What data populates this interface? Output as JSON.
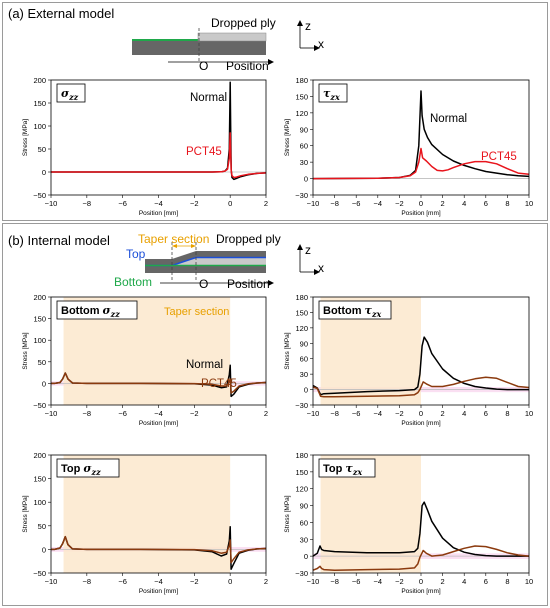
{
  "panels": {
    "a": {
      "title": "(a) External model",
      "schematic": {
        "dropped_ply": "Dropped ply",
        "origin": "O",
        "position": "Position",
        "axis_z": "z",
        "axis_x": "x"
      }
    },
    "b": {
      "title": "(b) Internal model",
      "schematic": {
        "taper_section": "Taper section",
        "dropped_ply": "Dropped ply",
        "top": "Top",
        "bottom": "Bottom",
        "origin": "O",
        "position": "Position",
        "axis_z": "z",
        "axis_x": "x"
      }
    }
  },
  "colors": {
    "normal": "#000000",
    "pct45_a": "#e8141c",
    "pct45_b": "#8b3a0e",
    "taper_fill": "#fbe7cc",
    "taper_label": "#e8a000",
    "highlight": "#f6c9ea",
    "top": "#1c4fd8",
    "bottom": "#1fa84a",
    "ply_dark": "#666666",
    "ply_light": "#c9c9c9",
    "green_layer": "#1fa84a"
  },
  "chart_data": [
    {
      "id": "a-szz",
      "type": "line",
      "title": "σzz",
      "title_main": "σ",
      "title_sub": "zz",
      "xlabel": "Position [mm]",
      "ylabel": "Stress [MPa]",
      "xlim": [
        -10,
        2
      ],
      "ylim": [
        -50,
        200
      ],
      "xticks": [
        "−10",
        "−8",
        "−6",
        "−4",
        "−2",
        "0",
        "2"
      ],
      "yticks": [
        "−50",
        "0",
        "50",
        "100",
        "150",
        "200"
      ],
      "annotations": [
        {
          "text": "Normal",
          "series": "normal"
        },
        {
          "text": "PCT45",
          "series": "pct45"
        }
      ],
      "series": [
        {
          "name": "Normal",
          "color_key": "normal",
          "x": [
            -10,
            -1.0,
            -0.5,
            -0.3,
            -0.15,
            -0.05,
            0.0,
            0.03,
            0.06,
            0.1,
            0.2,
            0.35,
            0.6,
            1.0,
            1.5,
            2.0
          ],
          "y": [
            0,
            0,
            0.5,
            2,
            8,
            50,
            195,
            90,
            5,
            -12,
            -16,
            -14,
            -10,
            -6,
            -3,
            -2
          ]
        },
        {
          "name": "PCT45",
          "color_key": "pct45_a",
          "x": [
            -10,
            -1.0,
            -0.5,
            -0.3,
            -0.15,
            -0.05,
            0.0,
            0.03,
            0.06,
            0.1,
            0.2,
            0.35,
            0.6,
            1.0,
            1.5,
            2.0
          ],
          "y": [
            0,
            0,
            0.5,
            2,
            6,
            30,
            85,
            40,
            3,
            -8,
            -12,
            -11,
            -8,
            -5,
            -3,
            -2
          ]
        }
      ]
    },
    {
      "id": "a-tzx",
      "type": "line",
      "title": "τzx",
      "title_main": "τ",
      "title_sub": "zx",
      "xlabel": "Position [mm]",
      "ylabel": "Stress [MPa]",
      "xlim": [
        -10,
        10
      ],
      "ylim": [
        -30,
        180
      ],
      "xticks": [
        "−10",
        "−8",
        "−6",
        "−4",
        "−2",
        "0",
        "2",
        "4",
        "6",
        "8",
        "10"
      ],
      "yticks": [
        "−30",
        "0",
        "30",
        "60",
        "90",
        "120",
        "150",
        "180"
      ],
      "annotations": [
        {
          "text": "Normal",
          "series": "normal"
        },
        {
          "text": "PCT45",
          "series": "pct45"
        }
      ],
      "series": [
        {
          "name": "Normal",
          "color_key": "normal",
          "x": [
            -10,
            -4,
            -2,
            -1,
            -0.5,
            -0.2,
            0,
            0.1,
            0.3,
            0.6,
            1,
            2,
            3,
            4,
            5,
            6,
            7,
            8,
            9,
            10
          ],
          "y": [
            0,
            0.5,
            2,
            6,
            15,
            60,
            160,
            115,
            90,
            75,
            62,
            44,
            32,
            24,
            18,
            13,
            10,
            7,
            5,
            4
          ]
        },
        {
          "name": "PCT45",
          "color_key": "pct45_a",
          "x": [
            -10,
            -4,
            -2,
            -1,
            -0.5,
            -0.2,
            0,
            0.15,
            0.5,
            1,
            1.5,
            2,
            2.5,
            3,
            4,
            5,
            6,
            7,
            8,
            9,
            10
          ],
          "y": [
            0,
            0.5,
            2,
            5,
            12,
            30,
            55,
            38,
            32,
            22,
            15,
            14,
            16,
            20,
            27,
            31,
            31,
            27,
            18,
            10,
            8
          ]
        }
      ]
    },
    {
      "id": "b-bottom-szz",
      "type": "line",
      "title": "Bottom σzz",
      "title_prefix": "Bottom ",
      "title_main": "σ",
      "title_sub": "zz",
      "xlabel": "Position [mm]",
      "ylabel": "Stress [MPa]",
      "xlim": [
        -10,
        2
      ],
      "ylim": [
        -50,
        200
      ],
      "xticks": [
        "−10",
        "−8",
        "−6",
        "−4",
        "−2",
        "0",
        "2"
      ],
      "yticks": [
        "−50",
        "0",
        "50",
        "100",
        "150",
        "200"
      ],
      "taper_region": [
        -9.3,
        0
      ],
      "highlight_band": [
        -5,
        5
      ],
      "taper_label": "Taper section",
      "annotations": [
        {
          "text": "Normal",
          "series": "normal"
        },
        {
          "text": "PCT45",
          "series": "pct45"
        }
      ],
      "series": [
        {
          "name": "Normal",
          "color_key": "normal",
          "x": [
            -10,
            -9.8,
            -9.5,
            -9.35,
            -9.2,
            -9.05,
            -8.8,
            -8.0,
            -5,
            -2,
            -1,
            -0.5,
            -0.2,
            -0.05,
            0,
            0.05,
            0.2,
            0.5,
            1,
            1.5,
            2
          ],
          "y": [
            0,
            0,
            2,
            10,
            24,
            10,
            1,
            0,
            0,
            -1,
            -4,
            -10,
            -8,
            20,
            42,
            -30,
            -25,
            -8,
            -2,
            1,
            2
          ]
        },
        {
          "name": "PCT45",
          "color_key": "pct45_b",
          "x": [
            -10,
            -9.8,
            -9.5,
            -9.35,
            -9.2,
            -9.05,
            -8.8,
            -8.0,
            -5,
            -2,
            -1,
            -0.5,
            -0.2,
            -0.05,
            0,
            0.05,
            0.2,
            0.5,
            1,
            1.5,
            2
          ],
          "y": [
            0,
            0,
            2,
            10,
            24,
            10,
            1,
            0,
            0,
            -0.5,
            -2,
            -6,
            -6,
            4,
            10,
            -22,
            -18,
            -6,
            -1,
            1,
            2
          ]
        }
      ]
    },
    {
      "id": "b-bottom-tzx",
      "type": "line",
      "title": "Bottom τzx",
      "title_prefix": "Bottom ",
      "title_main": "τ",
      "title_sub": "zx",
      "xlabel": "Position [mm]",
      "ylabel": "Stress [MPa]",
      "xlim": [
        -10,
        10
      ],
      "ylim": [
        -30,
        180
      ],
      "xticks": [
        "−10",
        "−8",
        "−6",
        "−4",
        "−2",
        "0",
        "2",
        "4",
        "6",
        "8",
        "10"
      ],
      "yticks": [
        "−30",
        "0",
        "30",
        "60",
        "90",
        "120",
        "150",
        "180"
      ],
      "taper_region": [
        -9.3,
        0
      ],
      "highlight_band": [
        -5,
        5
      ],
      "series": [
        {
          "name": "Normal",
          "color_key": "normal",
          "x": [
            -10,
            -9.6,
            -9.3,
            -9.0,
            -8,
            -5,
            -2,
            -0.6,
            -0.3,
            -0.1,
            0.1,
            0.3,
            0.6,
            1,
            2,
            3,
            4,
            5,
            6,
            7,
            8,
            9,
            10
          ],
          "y": [
            8,
            3,
            -10,
            -8,
            -7,
            -4,
            -2,
            0,
            5,
            30,
            85,
            102,
            92,
            70,
            40,
            22,
            12,
            6,
            3,
            1,
            0,
            0,
            0
          ]
        },
        {
          "name": "PCT45",
          "color_key": "pct45_b",
          "x": [
            -10,
            -9.6,
            -9.3,
            -9.0,
            -8,
            -5,
            -2,
            -0.6,
            -0.3,
            -0.1,
            0.2,
            0.5,
            1,
            2,
            3,
            4,
            5,
            6,
            7,
            8,
            9,
            10
          ],
          "y": [
            5,
            2,
            -13,
            -14,
            -14,
            -13,
            -12,
            -10,
            -6,
            0,
            15,
            11,
            6,
            6,
            10,
            16,
            21,
            24,
            22,
            14,
            6,
            4
          ]
        }
      ]
    },
    {
      "id": "b-top-szz",
      "type": "line",
      "title": "Top σzz",
      "title_prefix": "Top ",
      "title_main": "σ",
      "title_sub": "zz",
      "xlabel": "Position [mm]",
      "ylabel": "Stress [MPa]",
      "xlim": [
        -10,
        2
      ],
      "ylim": [
        -50,
        200
      ],
      "xticks": [
        "−10",
        "−8",
        "−6",
        "−4",
        "−2",
        "0",
        "2"
      ],
      "yticks": [
        "−50",
        "0",
        "50",
        "100",
        "150",
        "200"
      ],
      "taper_region": [
        -9.3,
        0
      ],
      "highlight_band": [
        -5,
        5
      ],
      "series": [
        {
          "name": "Normal",
          "color_key": "normal",
          "x": [
            -10,
            -9.8,
            -9.5,
            -9.35,
            -9.2,
            -9.05,
            -8.8,
            -8.0,
            -5,
            -2,
            -1,
            -0.5,
            -0.2,
            -0.05,
            0,
            0.05,
            0.2,
            0.5,
            1,
            1.5,
            2
          ],
          "y": [
            0,
            0,
            3,
            12,
            27,
            10,
            1,
            0,
            0,
            -1,
            -5,
            -14,
            -10,
            18,
            48,
            -42,
            -30,
            -8,
            -2,
            1,
            2
          ]
        },
        {
          "name": "PCT45",
          "color_key": "pct45_b",
          "x": [
            -10,
            -9.8,
            -9.5,
            -9.35,
            -9.2,
            -9.05,
            -8.8,
            -8.0,
            -5,
            -2,
            -1,
            -0.5,
            -0.2,
            -0.05,
            0,
            0.05,
            0.2,
            0.5,
            1,
            1.5,
            2
          ],
          "y": [
            0,
            0,
            3,
            12,
            27,
            10,
            1,
            0,
            0,
            -0.5,
            -3,
            -8,
            -6,
            8,
            20,
            -28,
            -20,
            -6,
            -1,
            1,
            2
          ]
        }
      ]
    },
    {
      "id": "b-top-tzx",
      "type": "line",
      "title": "Top τzx",
      "title_prefix": "Top ",
      "title_main": "τ",
      "title_sub": "zx",
      "xlabel": "Position [mm]",
      "ylabel": "Stress [MPa]",
      "xlim": [
        -10,
        10
      ],
      "ylim": [
        -30,
        180
      ],
      "xticks": [
        "−10",
        "−8",
        "−6",
        "−4",
        "−2",
        "0",
        "2",
        "4",
        "6",
        "8",
        "10"
      ],
      "yticks": [
        "−30",
        "0",
        "30",
        "60",
        "90",
        "120",
        "150",
        "180"
      ],
      "taper_region": [
        -9.3,
        0
      ],
      "highlight_band": [
        -5,
        5
      ],
      "series": [
        {
          "name": "Normal",
          "color_key": "normal",
          "x": [
            -10,
            -9.6,
            -9.35,
            -9.2,
            -9.0,
            -8,
            -5,
            -2,
            -0.6,
            -0.3,
            -0.1,
            0.1,
            0.3,
            0.6,
            1,
            2,
            3,
            4,
            5,
            6,
            7,
            8,
            9,
            10
          ],
          "y": [
            0,
            5,
            18,
            12,
            10,
            8,
            6,
            6,
            8,
            14,
            40,
            90,
            96,
            82,
            62,
            32,
            15,
            7,
            3,
            1,
            0,
            0,
            0,
            0
          ]
        },
        {
          "name": "PCT45",
          "color_key": "pct45_b",
          "x": [
            -10,
            -9.6,
            -9.35,
            -9.2,
            -9.0,
            -8,
            -5,
            -2,
            -0.6,
            -0.3,
            -0.1,
            0.2,
            0.5,
            1,
            2,
            3,
            4,
            5,
            6,
            7,
            8,
            9,
            10
          ],
          "y": [
            -25,
            -22,
            -18,
            -22,
            -24,
            -25,
            -24,
            -23,
            -21,
            -14,
            -2,
            10,
            5,
            0,
            2,
            8,
            14,
            18,
            17,
            12,
            6,
            2,
            0
          ]
        }
      ]
    }
  ]
}
